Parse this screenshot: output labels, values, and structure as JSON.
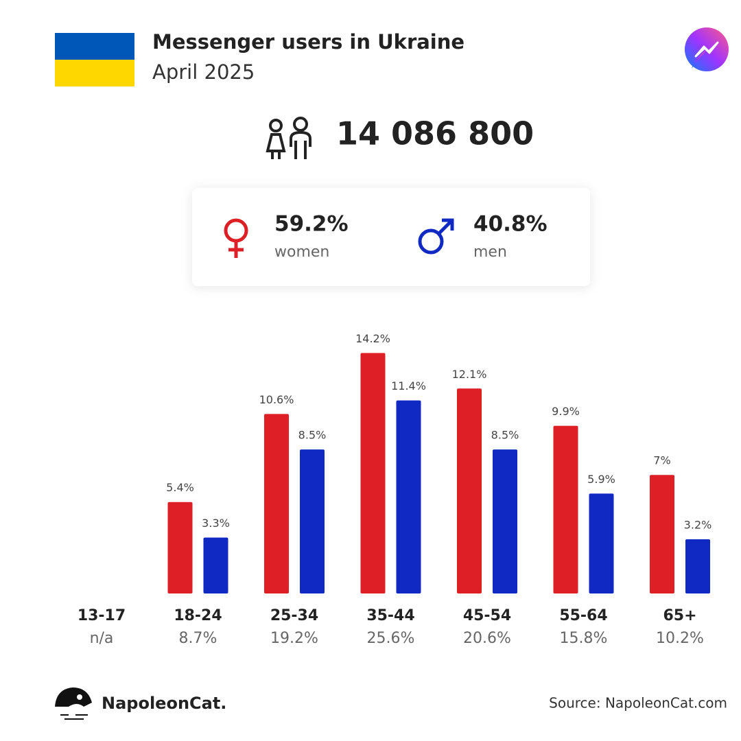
{
  "header": {
    "title": "Messenger users in Ukraine",
    "subtitle": "April 2025"
  },
  "total_users": "14 086 800",
  "chart_data": {
    "type": "bar",
    "categories": [
      "13-17",
      "18-24",
      "25-34",
      "35-44",
      "45-54",
      "55-64",
      "65+"
    ],
    "group_totals": [
      "n/a",
      "8.7%",
      "19.2%",
      "25.6%",
      "20.6%",
      "15.8%",
      "10.2%"
    ],
    "series": [
      {
        "name": "women",
        "share": "59.2%",
        "color": "#de1f26",
        "values": [
          null,
          5.4,
          10.6,
          14.2,
          12.1,
          9.9,
          7
        ],
        "value_labels": [
          null,
          "5.4%",
          "10.6%",
          "14.2%",
          "12.1%",
          "9.9%",
          "7%"
        ]
      },
      {
        "name": "men",
        "share": "40.8%",
        "color": "#1129c3",
        "values": [
          null,
          3.3,
          8.5,
          11.4,
          8.5,
          5.9,
          3.2
        ],
        "value_labels": [
          null,
          "3.3%",
          "8.5%",
          "11.4%",
          "8.5%",
          "5.9%",
          "3.2%"
        ]
      }
    ],
    "ylim": [
      0,
      16
    ]
  },
  "footer": {
    "brand": "NapoleonCat.",
    "source": "Source: NapoleonCat.com"
  }
}
